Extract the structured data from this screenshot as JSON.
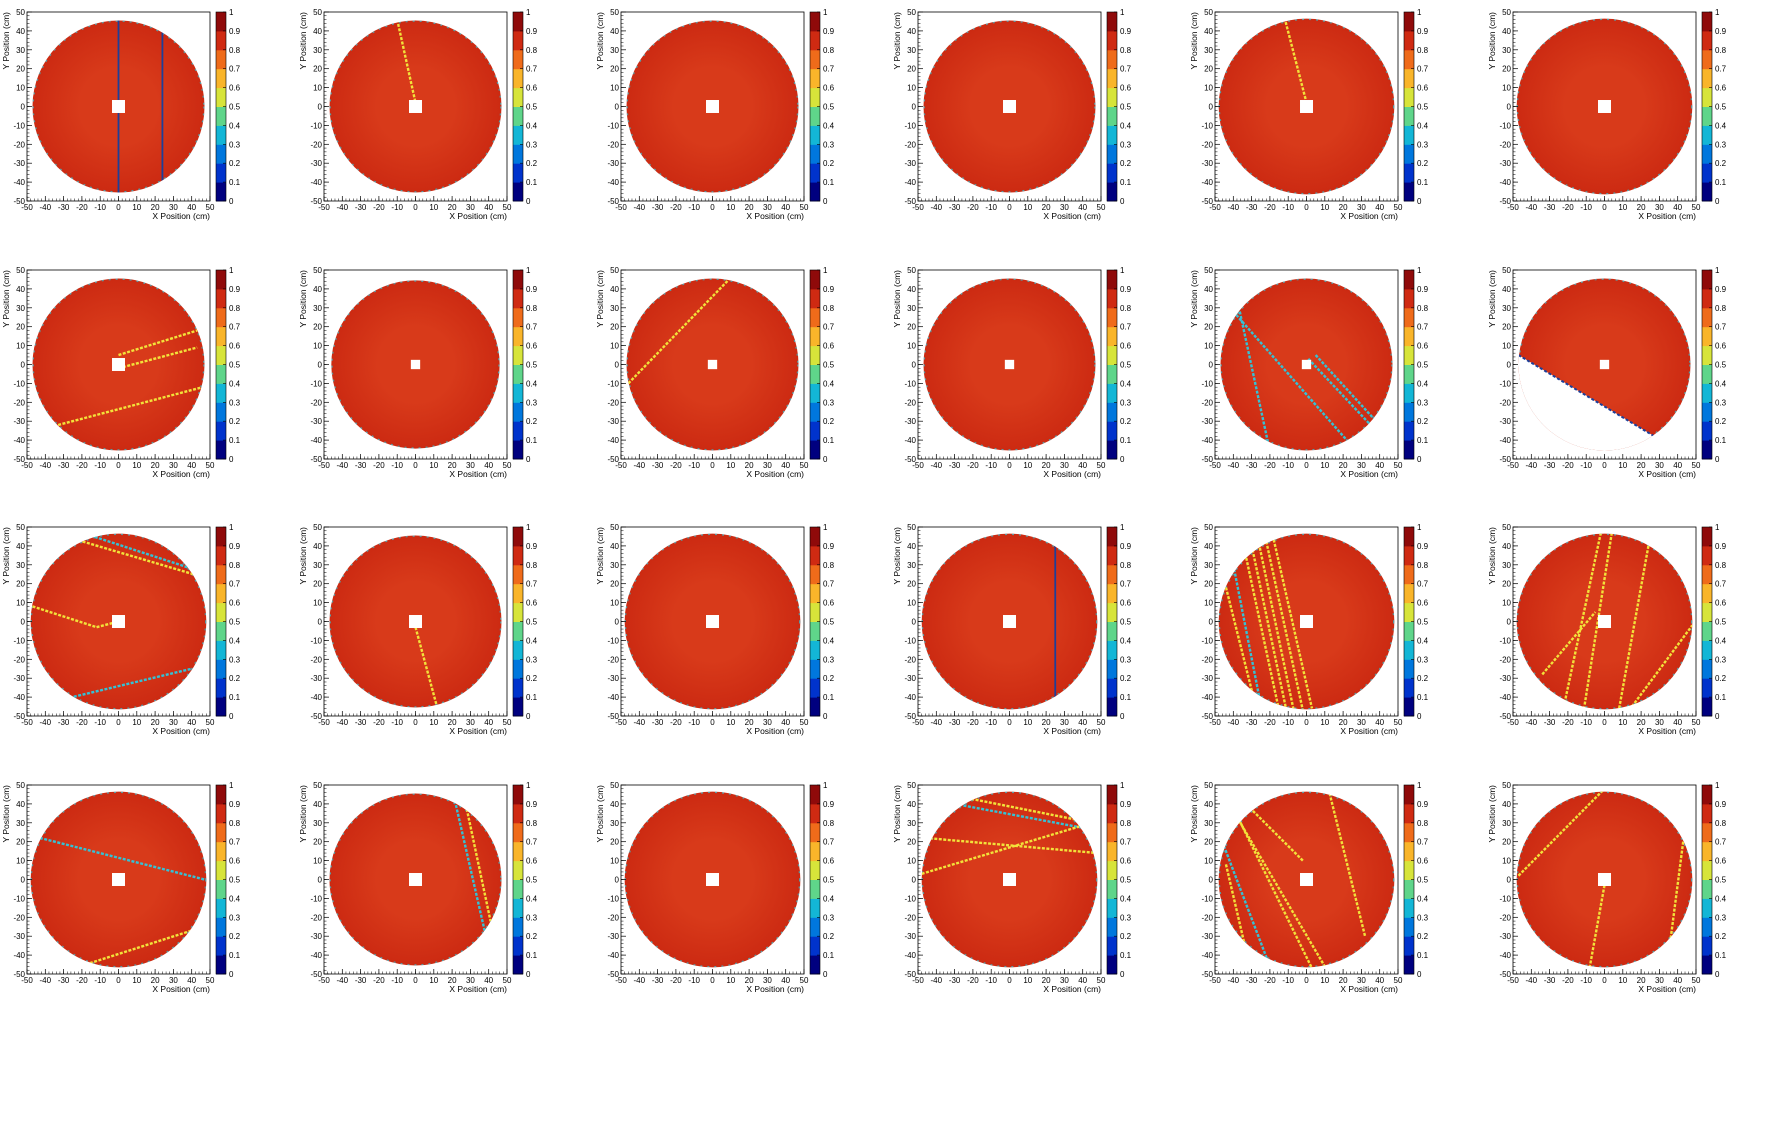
{
  "colors": {
    "background": "#ffffff",
    "frame": "#000000",
    "disk_fill": "#cc2a12",
    "disk_fill_light": "#d83a1a",
    "stripe_yellow": "#f2e23a",
    "stripe_cyan": "#33c2d6",
    "stripe_blue": "#1c3f9a",
    "center_hole": "#ffffff",
    "palette": [
      "#00007f",
      "#0033cc",
      "#0077dd",
      "#13b6d6",
      "#5fd58a",
      "#d7e43a",
      "#f9b52a",
      "#ef6b1a",
      "#cf2a12",
      "#8f0a0a"
    ]
  },
  "panel_template": {
    "xlabel": "X Position (cm)",
    "ylabel": "Y Position (cm)",
    "x_ticks": [
      "-50",
      "-40",
      "-30",
      "-20",
      "-10",
      "0",
      "10",
      "20",
      "30",
      "40",
      "50"
    ],
    "y_ticks": [
      "-50",
      "-40",
      "-30",
      "-20",
      "-10",
      "0",
      "10",
      "20",
      "30",
      "40",
      "50"
    ],
    "z_ticks": [
      "0",
      "0.1",
      "0.2",
      "0.3",
      "0.4",
      "0.5",
      "0.6",
      "0.7",
      "0.8",
      "0.9",
      "1"
    ]
  },
  "chart_data": [
    {
      "type": "heatmap",
      "xlabel": "X Position (cm)",
      "ylabel": "Y Position (cm)",
      "xlim": [
        -50,
        50
      ],
      "ylim": [
        -50,
        50
      ],
      "zlim": [
        0,
        1
      ],
      "disk_radius_cm": 47,
      "hole_radius_cm": 3,
      "map_value": 0.95,
      "lines": [
        {
          "x1": 0,
          "y1": 47,
          "x2": 0,
          "y2": -47,
          "color": "blue"
        },
        {
          "x1": 24,
          "y1": 42,
          "x2": 24,
          "y2": -41,
          "color": "blue"
        }
      ]
    },
    {
      "type": "heatmap",
      "xlabel": "X Position (cm)",
      "ylabel": "Y Position (cm)",
      "xlim": [
        -50,
        50
      ],
      "ylim": [
        -50,
        50
      ],
      "zlim": [
        0,
        1
      ],
      "disk_radius_cm": 47,
      "hole_radius_cm": 3,
      "map_value": 0.95,
      "lines": [
        {
          "x1": -10,
          "y1": 46,
          "x2": 0,
          "y2": 2,
          "color": "yellow"
        }
      ]
    },
    {
      "type": "heatmap",
      "xlabel": "X Position (cm)",
      "ylabel": "Y Position (cm)",
      "xlim": [
        -50,
        50
      ],
      "ylim": [
        -50,
        50
      ],
      "zlim": [
        0,
        1
      ],
      "disk_radius_cm": 47,
      "hole_radius_cm": 3,
      "map_value": 0.95,
      "lines": []
    },
    {
      "type": "heatmap",
      "xlabel": "X Position (cm)",
      "ylabel": "Y Position (cm)",
      "xlim": [
        -50,
        50
      ],
      "ylim": [
        -50,
        50
      ],
      "zlim": [
        0,
        1
      ],
      "disk_radius_cm": 47,
      "hole_radius_cm": 3,
      "map_value": 0.95,
      "lines": []
    },
    {
      "type": "heatmap",
      "xlabel": "X Position (cm)",
      "ylabel": "Y Position (cm)",
      "xlim": [
        -50,
        50
      ],
      "ylim": [
        -50,
        50
      ],
      "zlim": [
        0,
        1
      ],
      "disk_radius_cm": 48,
      "hole_radius_cm": 3,
      "map_value": 0.95,
      "lines": [
        {
          "x1": -12,
          "y1": 47,
          "x2": 0,
          "y2": 2,
          "color": "yellow"
        }
      ]
    },
    {
      "type": "heatmap",
      "xlabel": "X Position (cm)",
      "ylabel": "Y Position (cm)",
      "xlim": [
        -50,
        50
      ],
      "ylim": [
        -50,
        50
      ],
      "zlim": [
        0,
        1
      ],
      "disk_radius_cm": 48,
      "hole_radius_cm": 3,
      "map_value": 0.95,
      "lines": []
    },
    {
      "type": "heatmap",
      "xlabel": "X Position (cm)",
      "ylabel": "Y Position (cm)",
      "xlim": [
        -50,
        50
      ],
      "ylim": [
        -50,
        50
      ],
      "zlim": [
        0,
        1
      ],
      "disk_radius_cm": 47,
      "hole_radius_cm": 3,
      "map_value": 0.95,
      "lines": [
        {
          "x1": -33,
          "y1": -32,
          "x2": 46,
          "y2": -12,
          "color": "yellow"
        },
        {
          "x1": 0,
          "y1": 5,
          "x2": 43,
          "y2": 18,
          "color": "yellow"
        },
        {
          "x1": 0,
          "y1": -2,
          "x2": 43,
          "y2": 9,
          "color": "yellow"
        }
      ]
    },
    {
      "type": "heatmap",
      "xlabel": "X Position (cm)",
      "ylabel": "Y Position (cm)",
      "xlim": [
        -50,
        50
      ],
      "ylim": [
        -50,
        50
      ],
      "zlim": [
        0,
        1
      ],
      "disk_radius_cm": 46,
      "hole_radius_cm": 2,
      "map_value": 0.95,
      "lines": []
    },
    {
      "type": "heatmap",
      "xlabel": "X Position (cm)",
      "ylabel": "Y Position (cm)",
      "xlim": [
        -50,
        50
      ],
      "ylim": [
        -50,
        50
      ],
      "zlim": [
        0,
        1
      ],
      "disk_radius_cm": 47,
      "hole_radius_cm": 2,
      "map_value": 0.95,
      "lines": [
        {
          "x1": -46,
          "y1": -10,
          "x2": 12,
          "y2": 48,
          "color": "yellow"
        }
      ]
    },
    {
      "type": "heatmap",
      "xlabel": "X Position (cm)",
      "ylabel": "Y Position (cm)",
      "xlim": [
        -50,
        50
      ],
      "ylim": [
        -50,
        50
      ],
      "zlim": [
        0,
        1
      ],
      "disk_radius_cm": 47,
      "hole_radius_cm": 2,
      "map_value": 0.95,
      "lines": []
    },
    {
      "type": "heatmap",
      "xlabel": "X Position (cm)",
      "ylabel": "Y Position (cm)",
      "xlim": [
        -50,
        50
      ],
      "ylim": [
        -50,
        50
      ],
      "zlim": [
        0,
        1
      ],
      "disk_radius_cm": 47,
      "hole_radius_cm": 2,
      "map_value": 0.95,
      "lines": [
        {
          "x1": -38,
          "y1": 35,
          "x2": -20,
          "y2": -46,
          "color": "cyan"
        },
        {
          "x1": -40,
          "y1": 28,
          "x2": 22,
          "y2": -40,
          "color": "cyan"
        },
        {
          "x1": 5,
          "y1": 5,
          "x2": 38,
          "y2": -30,
          "color": "cyan"
        },
        {
          "x1": 1,
          "y1": 3,
          "x2": 36,
          "y2": -33,
          "color": "cyan"
        }
      ]
    },
    {
      "type": "heatmap",
      "xlabel": "X Position (cm)",
      "ylabel": "Y Position (cm)",
      "xlim": [
        -50,
        50
      ],
      "ylim": [
        -50,
        50
      ],
      "zlim": [
        0,
        1
      ],
      "disk_radius_cm": 47,
      "hole_radius_cm": 2,
      "map_value": 0.95,
      "clip_below": {
        "x1": -47,
        "y1": 5,
        "x2": 29,
        "y2": -39
      },
      "lines": []
    },
    {
      "type": "heatmap",
      "xlabel": "X Position (cm)",
      "ylabel": "Y Position (cm)",
      "xlim": [
        -50,
        50
      ],
      "ylim": [
        -50,
        50
      ],
      "zlim": [
        0,
        1
      ],
      "disk_radius_cm": 48,
      "hole_radius_cm": 3,
      "map_value": 0.95,
      "lines": [
        {
          "x1": -20,
          "y1": 47,
          "x2": 43,
          "y2": 27,
          "color": "cyan"
        },
        {
          "x1": -22,
          "y1": 43,
          "x2": 41,
          "y2": 25,
          "color": "yellow"
        },
        {
          "x1": -47,
          "y1": 8,
          "x2": -12,
          "y2": -3,
          "color": "yellow"
        },
        {
          "x1": -12,
          "y1": -3,
          "x2": 0,
          "y2": 0,
          "color": "yellow"
        },
        {
          "x1": -34,
          "y1": -42,
          "x2": 40,
          "y2": -25,
          "color": "cyan"
        }
      ]
    },
    {
      "type": "heatmap",
      "xlabel": "X Position (cm)",
      "ylabel": "Y Position (cm)",
      "xlim": [
        -50,
        50
      ],
      "ylim": [
        -50,
        50
      ],
      "zlim": [
        0,
        1
      ],
      "disk_radius_cm": 47,
      "hole_radius_cm": 3,
      "map_value": 0.95,
      "lines": [
        {
          "x1": 0,
          "y1": -3,
          "x2": 12,
          "y2": -46,
          "color": "yellow"
        }
      ]
    },
    {
      "type": "heatmap",
      "xlabel": "X Position (cm)",
      "ylabel": "Y Position (cm)",
      "xlim": [
        -50,
        50
      ],
      "ylim": [
        -50,
        50
      ],
      "zlim": [
        0,
        1
      ],
      "disk_radius_cm": 48,
      "hole_radius_cm": 3,
      "map_value": 0.95,
      "lines": []
    },
    {
      "type": "heatmap",
      "xlabel": "X Position (cm)",
      "ylabel": "Y Position (cm)",
      "xlim": [
        -50,
        50
      ],
      "ylim": [
        -50,
        50
      ],
      "zlim": [
        0,
        1
      ],
      "disk_radius_cm": 48,
      "hole_radius_cm": 3,
      "map_value": 0.95,
      "lines": [
        {
          "x1": 25,
          "y1": 43,
          "x2": 25,
          "y2": -42,
          "color": "blue"
        }
      ]
    },
    {
      "type": "heatmap",
      "xlabel": "X Position (cm)",
      "ylabel": "Y Position (cm)",
      "xlim": [
        -50,
        50
      ],
      "ylim": [
        -50,
        50
      ],
      "zlim": [
        0,
        1
      ],
      "disk_radius_cm": 48,
      "hole_radius_cm": 3,
      "map_value": 0.95,
      "lines": [
        {
          "x1": -35,
          "y1": 43,
          "x2": -15,
          "y2": -47,
          "color": "yellow"
        },
        {
          "x1": -31,
          "y1": 45,
          "x2": -11,
          "y2": -47,
          "color": "yellow"
        },
        {
          "x1": -27,
          "y1": 46,
          "x2": -7,
          "y2": -47,
          "color": "yellow"
        },
        {
          "x1": -23,
          "y1": 47,
          "x2": -2,
          "y2": -47,
          "color": "yellow"
        },
        {
          "x1": -19,
          "y1": 48,
          "x2": 3,
          "y2": -46,
          "color": "yellow"
        },
        {
          "x1": -44,
          "y1": 18,
          "x2": -29,
          "y2": -40,
          "color": "yellow"
        },
        {
          "x1": -40,
          "y1": 30,
          "x2": -25,
          "y2": -44,
          "color": "cyan"
        }
      ]
    },
    {
      "type": "heatmap",
      "xlabel": "X Position (cm)",
      "ylabel": "Y Position (cm)",
      "xlim": [
        -50,
        50
      ],
      "ylim": [
        -50,
        50
      ],
      "zlim": [
        0,
        1
      ],
      "disk_radius_cm": 48,
      "hole_radius_cm": 3,
      "map_value": 0.95,
      "lines": [
        {
          "x1": -2,
          "y1": 47,
          "x2": -22,
          "y2": -44,
          "color": "yellow"
        },
        {
          "x1": 4,
          "y1": 47,
          "x2": -11,
          "y2": -45,
          "color": "yellow"
        },
        {
          "x1": 24,
          "y1": 40,
          "x2": 8,
          "y2": -46,
          "color": "yellow"
        },
        {
          "x1": -34,
          "y1": -28,
          "x2": -5,
          "y2": 5,
          "color": "yellow"
        },
        {
          "x1": 15,
          "y1": -45,
          "x2": 48,
          "y2": -2,
          "color": "yellow"
        }
      ]
    },
    {
      "type": "heatmap",
      "xlabel": "X Position (cm)",
      "ylabel": "Y Position (cm)",
      "xlim": [
        -50,
        50
      ],
      "ylim": [
        -50,
        50
      ],
      "zlim": [
        0,
        1
      ],
      "disk_radius_cm": 48,
      "hole_radius_cm": 3,
      "map_value": 0.95,
      "lines": [
        {
          "x1": -43,
          "y1": 22,
          "x2": 47,
          "y2": 0,
          "color": "cyan"
        },
        {
          "x1": -18,
          "y1": -45,
          "x2": 40,
          "y2": -27,
          "color": "yellow"
        }
      ]
    },
    {
      "type": "heatmap",
      "xlabel": "X Position (cm)",
      "ylabel": "Y Position (cm)",
      "xlim": [
        -50,
        50
      ],
      "ylim": [
        -50,
        50
      ],
      "zlim": [
        0,
        1
      ],
      "disk_radius_cm": 47,
      "hole_radius_cm": 3,
      "map_value": 0.95,
      "lines": [
        {
          "x1": 21,
          "y1": 44,
          "x2": 38,
          "y2": -28,
          "color": "cyan"
        },
        {
          "x1": 27,
          "y1": 42,
          "x2": 41,
          "y2": -22,
          "color": "yellow"
        }
      ]
    },
    {
      "type": "heatmap",
      "xlabel": "X Position (cm)",
      "ylabel": "Y Position (cm)",
      "xlim": [
        -50,
        50
      ],
      "ylim": [
        -50,
        50
      ],
      "zlim": [
        0,
        1
      ],
      "disk_radius_cm": 48,
      "hole_radius_cm": 3,
      "map_value": 0.95,
      "lines": []
    },
    {
      "type": "heatmap",
      "xlabel": "X Position (cm)",
      "ylabel": "Y Position (cm)",
      "xlim": [
        -50,
        50
      ],
      "ylim": [
        -50,
        50
      ],
      "zlim": [
        0,
        1
      ],
      "disk_radius_cm": 48,
      "hole_radius_cm": 3,
      "map_value": 0.95,
      "lines": [
        {
          "x1": -30,
          "y1": 40,
          "x2": 42,
          "y2": 27,
          "color": "cyan"
        },
        {
          "x1": -33,
          "y1": 45,
          "x2": 40,
          "y2": 31,
          "color": "yellow"
        },
        {
          "x1": -46,
          "y1": 22,
          "x2": 48,
          "y2": 14,
          "color": "yellow"
        },
        {
          "x1": -48,
          "y1": 3,
          "x2": 38,
          "y2": 28,
          "color": "yellow"
        }
      ]
    },
    {
      "type": "heatmap",
      "xlabel": "X Position (cm)",
      "ylabel": "Y Position (cm)",
      "xlim": [
        -50,
        50
      ],
      "ylim": [
        -50,
        50
      ],
      "zlim": [
        0,
        1
      ],
      "disk_radius_cm": 48,
      "hole_radius_cm": 3,
      "map_value": 0.95,
      "lines": [
        {
          "x1": -46,
          "y1": 20,
          "x2": -20,
          "y2": -46,
          "color": "cyan"
        },
        {
          "x1": -44,
          "y1": 8,
          "x2": -32,
          "y2": -42,
          "color": "yellow"
        },
        {
          "x1": -38,
          "y1": 33,
          "x2": 10,
          "y2": -46,
          "color": "yellow"
        },
        {
          "x1": -36,
          "y1": 30,
          "x2": 3,
          "y2": -47,
          "color": "yellow"
        },
        {
          "x1": 12,
          "y1": 48,
          "x2": 32,
          "y2": -30,
          "color": "yellow"
        },
        {
          "x1": -2,
          "y1": 10,
          "x2": -30,
          "y2": 37,
          "color": "yellow"
        }
      ]
    },
    {
      "type": "heatmap",
      "xlabel": "X Position (cm)",
      "ylabel": "Y Position (cm)",
      "xlim": [
        -50,
        50
      ],
      "ylim": [
        -50,
        50
      ],
      "zlim": [
        0,
        1
      ],
      "disk_radius_cm": 48,
      "hole_radius_cm": 3,
      "map_value": 0.95,
      "lines": [
        {
          "x1": -47,
          "y1": 2,
          "x2": 0,
          "y2": 48,
          "color": "yellow"
        },
        {
          "x1": 0,
          "y1": -3,
          "x2": -8,
          "y2": -46,
          "color": "yellow"
        },
        {
          "x1": 43,
          "y1": 20,
          "x2": 35,
          "y2": -40,
          "color": "yellow"
        }
      ]
    }
  ]
}
